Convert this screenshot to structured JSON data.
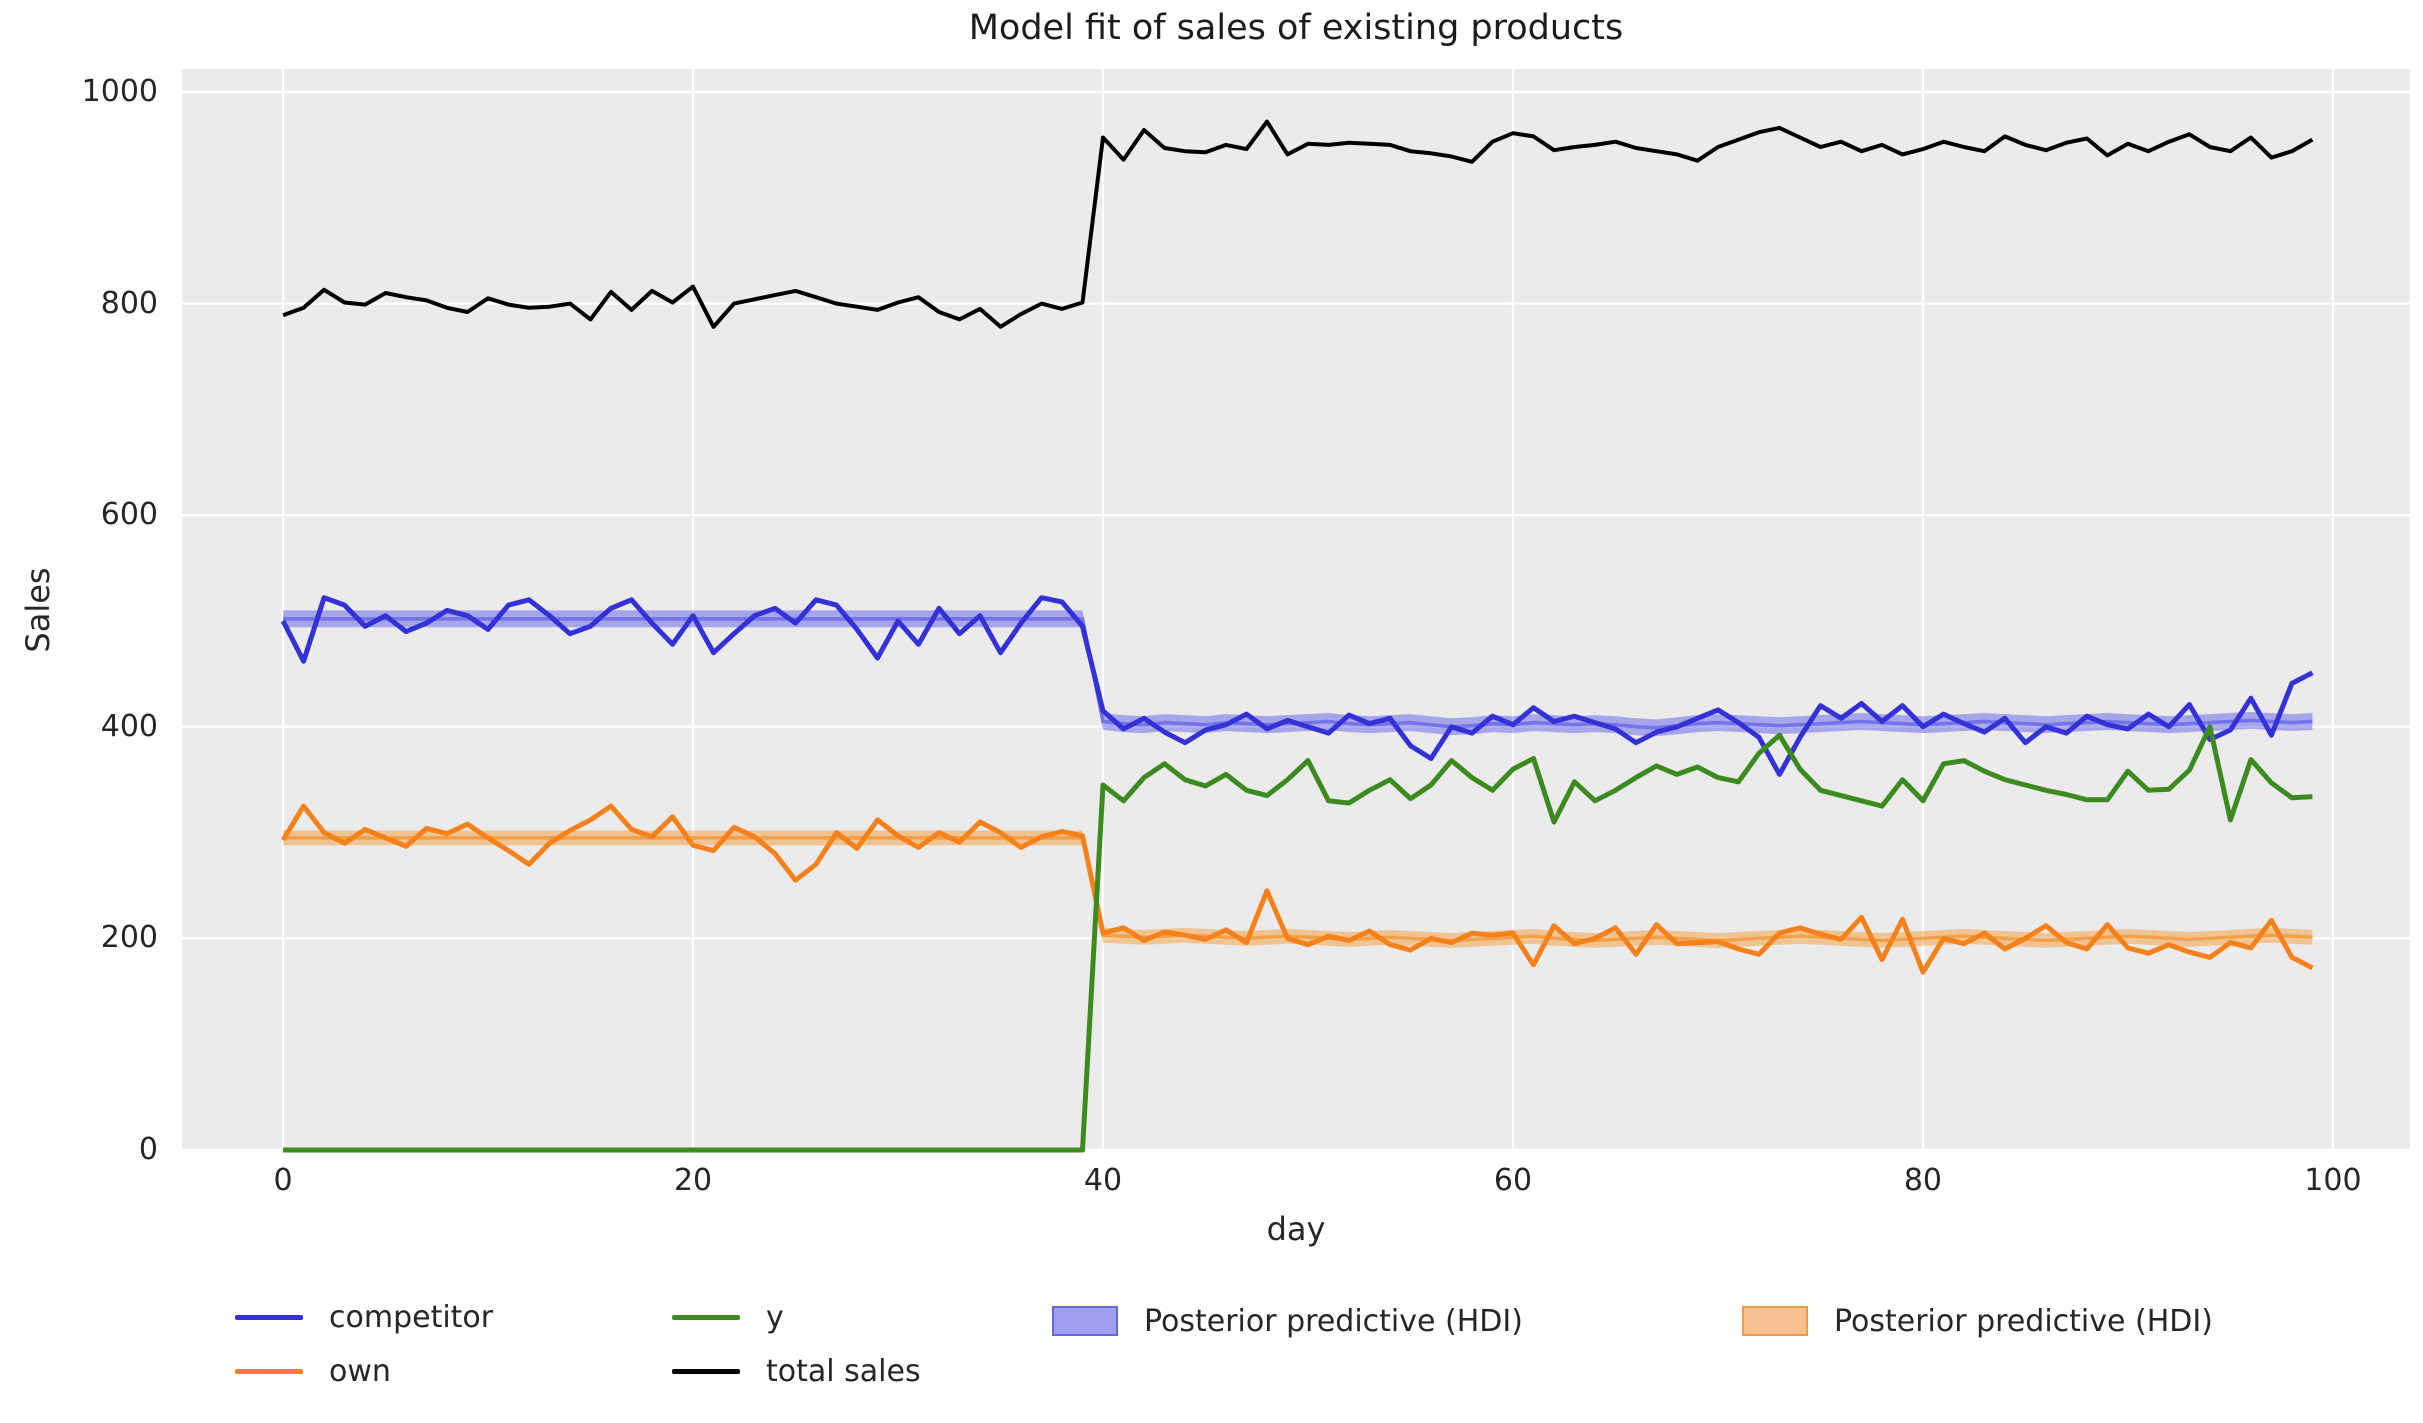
{
  "title": "Model fit of sales of existing products",
  "xlabel": "day",
  "ylabel": "Sales",
  "legend": {
    "entries": [
      {
        "label": "competitor",
        "type": "line",
        "color": "#3432d6"
      },
      {
        "label": "own",
        "type": "line",
        "color": "#f5811c"
      },
      {
        "label": "y",
        "type": "line",
        "color": "#3d8b20"
      },
      {
        "label": "total sales",
        "type": "line",
        "color": "#000000"
      },
      {
        "label": "Posterior predictive (HDI)",
        "type": "patch",
        "color": "#9f9ff1",
        "border": "#6666dd"
      },
      {
        "label": "Posterior predictive (HDI)",
        "type": "patch",
        "color": "#f8c290",
        "border": "#ec9a4d"
      }
    ]
  },
  "chart_data": {
    "type": "line",
    "title": "Model fit of sales of existing products",
    "xlabel": "day",
    "ylabel": "Sales",
    "x_description": "day index 0..99, step 1",
    "xlim": [
      -4.93,
      103.76
    ],
    "ylim": [
      0,
      1021.7
    ],
    "x_ticks": [
      0,
      20,
      40,
      60,
      80,
      100
    ],
    "y_ticks": [
      0,
      200,
      400,
      600,
      800,
      1000
    ],
    "grid": "on",
    "grid_color": "#ffffff",
    "plot_background": "#ebebeb",
    "legend_position": "below",
    "series": [
      {
        "name": "competitor",
        "color": "#3432d6",
        "width": 5,
        "values": [
          500,
          462,
          522,
          515,
          495,
          505,
          490,
          498,
          510,
          505,
          492,
          515,
          520,
          505,
          488,
          495,
          512,
          520,
          498,
          478,
          505,
          470,
          488,
          505,
          512,
          498,
          520,
          515,
          492,
          465,
          500,
          478,
          512,
          488,
          505,
          470,
          498,
          522,
          518,
          495,
          415,
          398,
          408,
          395,
          385,
          397,
          402,
          412,
          398,
          406,
          400,
          394,
          411,
          403,
          408,
          382,
          370,
          400,
          394,
          410,
          402,
          418,
          405,
          410,
          404,
          398,
          385,
          395,
          400,
          408,
          416,
          404,
          390,
          355,
          390,
          420,
          408,
          422,
          405,
          420,
          400,
          412,
          403,
          395,
          408,
          385,
          400,
          394,
          410,
          402,
          398,
          412,
          400,
          421,
          388,
          397,
          427,
          392,
          441,
          451
        ]
      },
      {
        "name": "own",
        "color": "#f5811c",
        "width": 5,
        "values": [
          293,
          325,
          300,
          290,
          303,
          295,
          287,
          304,
          299,
          308,
          295,
          283,
          270,
          290,
          302,
          312,
          325,
          303,
          296,
          315,
          288,
          283,
          305,
          296,
          280,
          255,
          270,
          300,
          285,
          312,
          297,
          286,
          300,
          291,
          310,
          300,
          286,
          296,
          301,
          297,
          205,
          210,
          198,
          206,
          203,
          199,
          208,
          196,
          245,
          200,
          194,
          202,
          198,
          207,
          194,
          189,
          200,
          196,
          205,
          203,
          205,
          175,
          212,
          195,
          200,
          210,
          185,
          213,
          195,
          196,
          197,
          190,
          185,
          205,
          210,
          204,
          199,
          220,
          180,
          218,
          168,
          200,
          195,
          205,
          190,
          200,
          212,
          196,
          190,
          213,
          191,
          186,
          194,
          187,
          182,
          196,
          191,
          217,
          182,
          172
        ]
      },
      {
        "name": "y",
        "color": "#3d8b20",
        "width": 5,
        "values": [
          0,
          0,
          0,
          0,
          0,
          0,
          0,
          0,
          0,
          0,
          0,
          0,
          0,
          0,
          0,
          0,
          0,
          0,
          0,
          0,
          0,
          0,
          0,
          0,
          0,
          0,
          0,
          0,
          0,
          0,
          0,
          0,
          0,
          0,
          0,
          0,
          0,
          0,
          0,
          0,
          345,
          330,
          352,
          365,
          350,
          344,
          355,
          340,
          335,
          350,
          368,
          330,
          328,
          340,
          350,
          332,
          345,
          368,
          352,
          340,
          360,
          370,
          310,
          348,
          330,
          340,
          352,
          363,
          355,
          362,
          352,
          348,
          375,
          392,
          360,
          340,
          335,
          330,
          325,
          350,
          330,
          365,
          368,
          358,
          350,
          345,
          340,
          336,
          331,
          331,
          358,
          340,
          341,
          359,
          400,
          312,
          369,
          347,
          333,
          334
        ]
      },
      {
        "name": "total sales",
        "color": "#000000",
        "width": 4,
        "values": [
          789,
          796,
          813,
          801,
          799,
          810,
          806,
          803,
          796,
          792,
          805,
          799,
          796,
          797,
          800,
          785,
          811,
          794,
          812,
          801,
          816,
          778,
          800,
          804,
          808,
          812,
          806,
          800,
          797,
          794,
          801,
          806,
          792,
          785,
          795,
          778,
          790,
          800,
          795,
          801,
          957,
          936,
          964,
          947,
          944,
          943,
          950,
          946,
          972,
          941,
          951,
          950,
          952,
          951,
          950,
          944,
          942,
          939,
          934,
          953,
          961,
          958,
          945,
          948,
          950,
          953,
          947,
          944,
          941,
          935,
          948,
          955,
          962,
          966,
          957,
          948,
          953,
          944,
          950,
          941,
          946,
          953,
          948,
          944,
          958,
          950,
          945,
          952,
          956,
          940,
          951,
          944,
          953,
          960,
          948,
          944,
          957,
          938,
          944,
          955
        ]
      }
    ],
    "bands": [
      {
        "name": "posterior-predictive-hdi-competitor",
        "fill": "#5050e6",
        "fill_opacity": 0.45,
        "mean_stroke": "#6a6ae8",
        "half_width": 8,
        "mean": [
          502,
          502,
          502,
          502,
          502,
          502,
          502,
          502,
          502,
          502,
          502,
          502,
          502,
          502,
          502,
          502,
          502,
          502,
          502,
          502,
          502,
          502,
          502,
          502,
          502,
          502,
          502,
          502,
          502,
          502,
          502,
          502,
          502,
          502,
          502,
          502,
          502,
          502,
          502,
          502,
          405,
          403,
          402,
          404,
          403,
          402,
          404,
          403,
          402,
          403,
          404,
          405,
          403,
          402,
          403,
          404,
          402,
          400,
          401,
          403,
          402,
          404,
          403,
          402,
          403,
          402,
          400,
          399,
          401,
          403,
          404,
          403,
          402,
          401,
          402,
          403,
          404,
          405,
          404,
          403,
          402,
          403,
          404,
          405,
          404,
          403,
          402,
          403,
          404,
          405,
          404,
          403,
          402,
          403,
          404,
          405,
          406,
          405,
          404,
          405
        ]
      },
      {
        "name": "posterior-predictive-hdi-own",
        "fill": "#f59425",
        "fill_opacity": 0.45,
        "mean_stroke": "#f09a3c",
        "half_width": 7,
        "mean": [
          295,
          295,
          295,
          295,
          295,
          295,
          295,
          295,
          295,
          295,
          295,
          295,
          295,
          295,
          295,
          295,
          295,
          295,
          295,
          295,
          295,
          295,
          295,
          295,
          295,
          295,
          295,
          295,
          295,
          295,
          295,
          295,
          295,
          295,
          295,
          295,
          295,
          295,
          295,
          295,
          203,
          202,
          201,
          202,
          203,
          202,
          201,
          200,
          201,
          202,
          201,
          200,
          199,
          200,
          201,
          200,
          199,
          198,
          199,
          200,
          201,
          202,
          200,
          199,
          198,
          199,
          200,
          201,
          200,
          199,
          198,
          199,
          200,
          201,
          202,
          201,
          200,
          199,
          198,
          199,
          200,
          201,
          202,
          201,
          200,
          199,
          198,
          199,
          200,
          201,
          202,
          201,
          200,
          199,
          200,
          201,
          202,
          203,
          202,
          201
        ]
      }
    ]
  }
}
